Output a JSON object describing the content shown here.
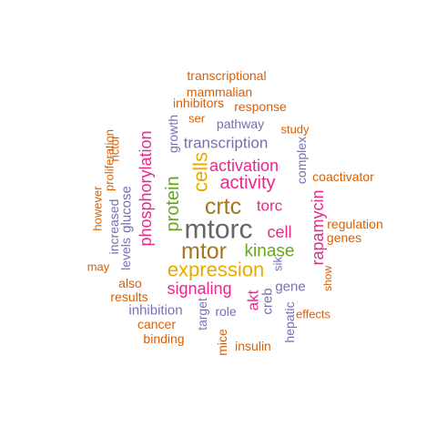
{
  "palette": {
    "gray": "#666666",
    "brown": "#a6761d",
    "gold": "#e6ab02",
    "green": "#66a61e",
    "magenta": "#e7298a",
    "purple": "#7570b3",
    "orange": "#d95f02"
  },
  "words": [
    {
      "text": "mtorc",
      "color": "gray"
    },
    {
      "text": "crtc",
      "color": "brown"
    },
    {
      "text": "mtor",
      "color": "brown"
    },
    {
      "text": "expression",
      "color": "gold"
    },
    {
      "text": "cells",
      "color": "gold"
    },
    {
      "text": "protein",
      "color": "green"
    },
    {
      "text": "kinase",
      "color": "green"
    },
    {
      "text": "phosphorylation",
      "color": "magenta"
    },
    {
      "text": "activity",
      "color": "magenta"
    },
    {
      "text": "activation",
      "color": "magenta"
    },
    {
      "text": "signaling",
      "color": "magenta"
    },
    {
      "text": "rapamycin",
      "color": "magenta"
    },
    {
      "text": "cell",
      "color": "magenta"
    },
    {
      "text": "torc",
      "color": "magenta"
    },
    {
      "text": "akt",
      "color": "magenta"
    },
    {
      "text": "transcription",
      "color": "purple"
    },
    {
      "text": "glucose",
      "color": "purple"
    },
    {
      "text": "inhibition",
      "color": "purple"
    },
    {
      "text": "gene",
      "color": "purple"
    },
    {
      "text": "creb",
      "color": "purple"
    },
    {
      "text": "target",
      "color": "purple"
    },
    {
      "text": "pathway",
      "color": "purple"
    },
    {
      "text": "growth",
      "color": "purple"
    },
    {
      "text": "complex",
      "color": "purple"
    },
    {
      "text": "role",
      "color": "purple"
    },
    {
      "text": "hepatic",
      "color": "purple"
    },
    {
      "text": "increased",
      "color": "purple"
    },
    {
      "text": "levels",
      "color": "purple"
    },
    {
      "text": "sik",
      "color": "purple"
    },
    {
      "text": "transcriptional",
      "color": "orange"
    },
    {
      "text": "mammalian",
      "color": "orange"
    },
    {
      "text": "inhibitors",
      "color": "orange"
    },
    {
      "text": "response",
      "color": "orange"
    },
    {
      "text": "ser",
      "color": "orange"
    },
    {
      "text": "study",
      "color": "orange"
    },
    {
      "text": "proliferation",
      "color": "orange"
    },
    {
      "text": "rictor",
      "color": "orange"
    },
    {
      "text": "coactivator",
      "color": "orange"
    },
    {
      "text": "however",
      "color": "orange"
    },
    {
      "text": "regulation",
      "color": "orange"
    },
    {
      "text": "genes",
      "color": "orange"
    },
    {
      "text": "may",
      "color": "orange"
    },
    {
      "text": "also",
      "color": "orange"
    },
    {
      "text": "results",
      "color": "orange"
    },
    {
      "text": "show",
      "color": "orange"
    },
    {
      "text": "effects",
      "color": "orange"
    },
    {
      "text": "cancer",
      "color": "orange"
    },
    {
      "text": "binding",
      "color": "orange"
    },
    {
      "text": "insulin",
      "color": "orange"
    },
    {
      "text": "mice",
      "color": "orange"
    }
  ]
}
